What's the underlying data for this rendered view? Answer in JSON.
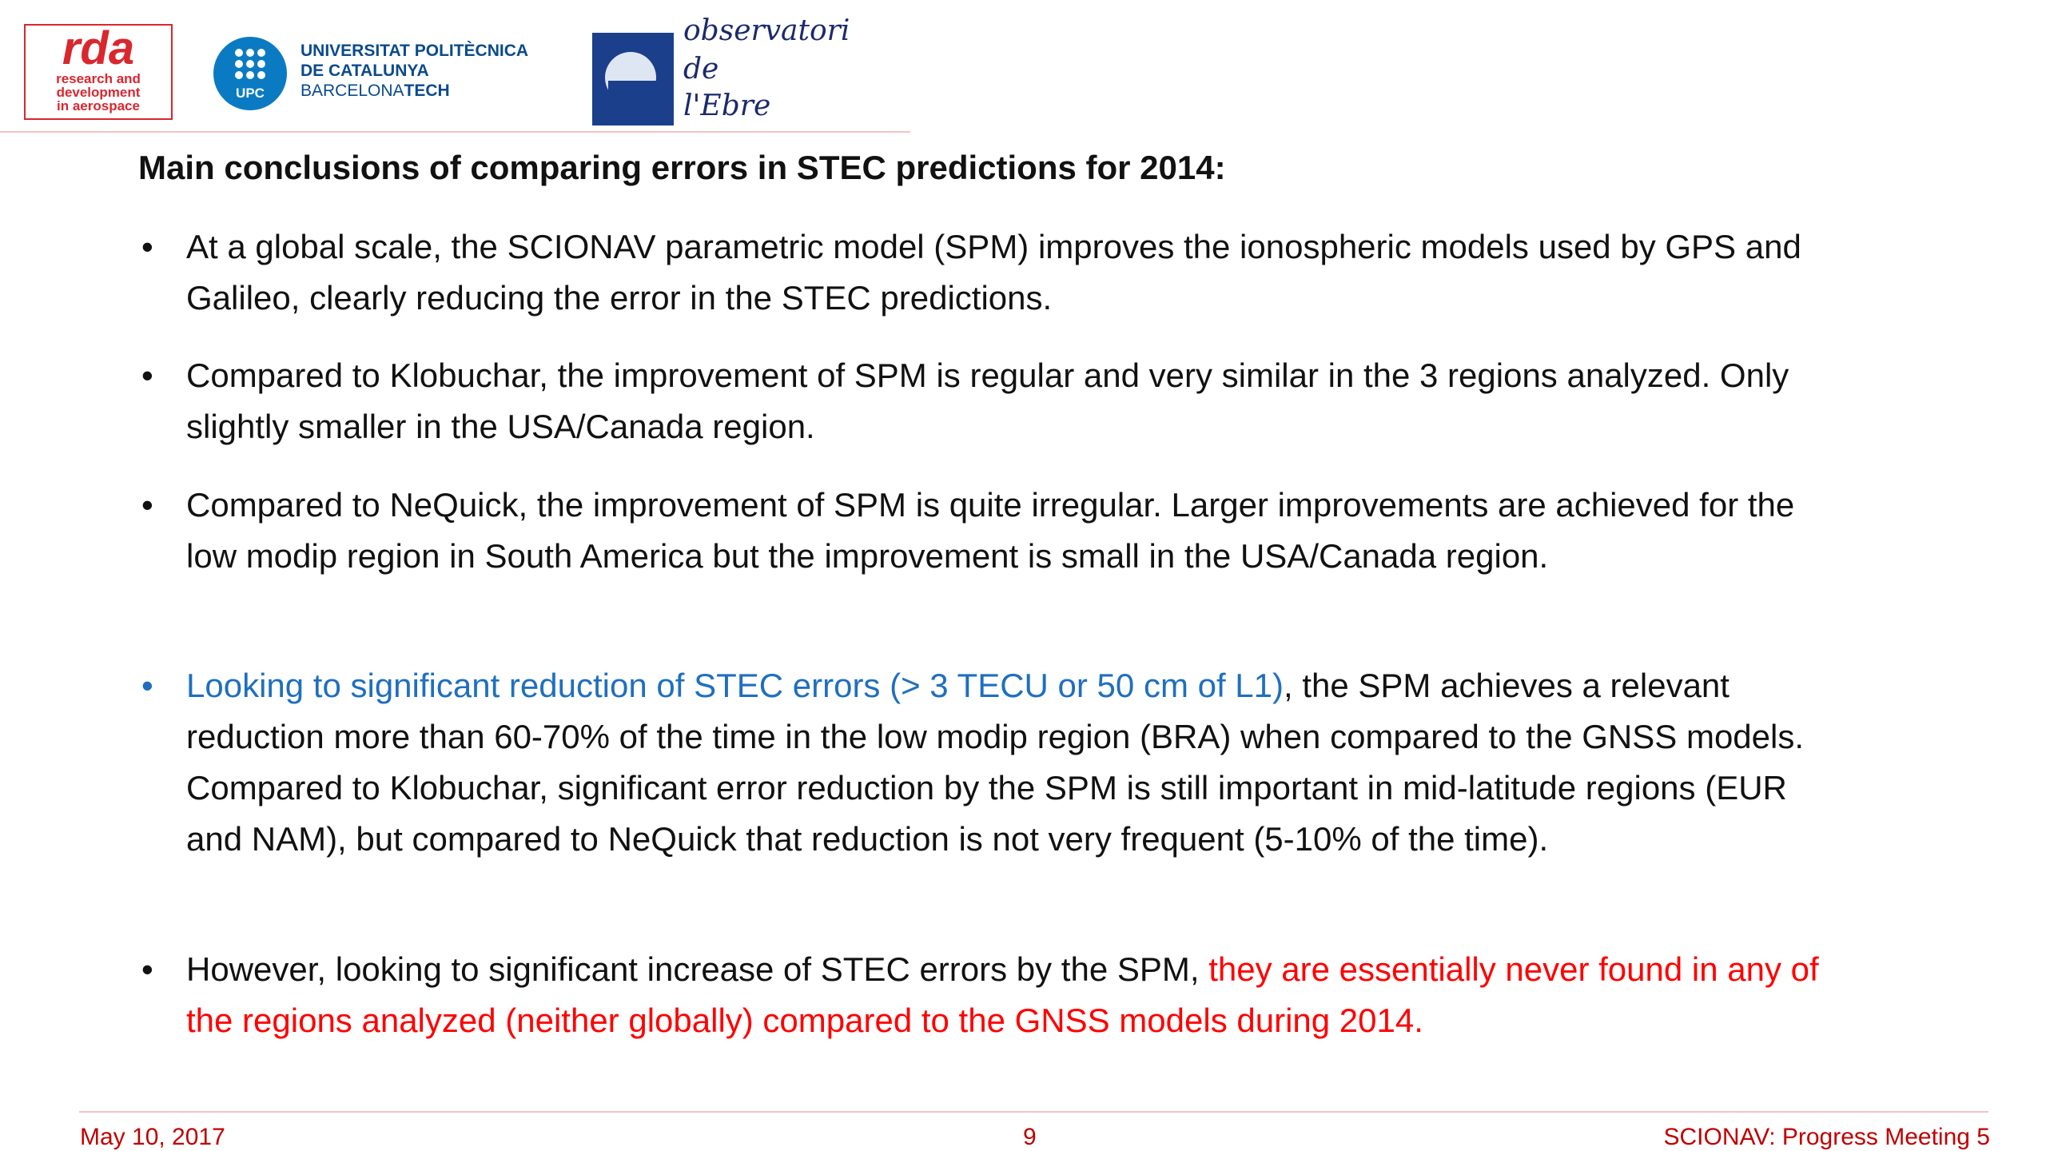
{
  "header": {
    "rda_logo": {
      "name": "rda",
      "tagline": [
        "research and",
        "development",
        "in aerospace"
      ]
    },
    "upc_logo": {
      "badge": "UPC",
      "lines": [
        "UNIVERSITAT POLITÈCNICA",
        "DE CATALUNYA"
      ],
      "sub_plain": "BARCELONA",
      "sub_bold": "TECH"
    },
    "ebre_logo": {
      "lines": [
        "observatori",
        "de",
        "l'Ebre"
      ]
    }
  },
  "title": "Main conclusions of comparing errors in STEC predictions for 2014:",
  "bullets": [
    {
      "segments": [
        {
          "text": "At a global scale, the SCIONAV parametric model (SPM) improves the ionospheric models used by GPS and Galileo, clearly reducing the error in the STEC predictions.",
          "color": "#111111"
        }
      ]
    },
    {
      "segments": [
        {
          "text": "Compared to Klobuchar, the improvement of SPM is regular and very similar in the 3 regions analyzed. Only slightly smaller in the USA/Canada region.",
          "color": "#111111"
        }
      ]
    },
    {
      "segments": [
        {
          "text": "Compared to NeQuick, the improvement of SPM is quite irregular. Larger improvements are achieved for the low modip region in South America but the improvement is small in the USA/Canada region.",
          "color": "#111111"
        }
      ]
    },
    {
      "bullet_color": "#1f6fbf",
      "segments": [
        {
          "text": "Looking to significant reduction of STEC errors (> 3 TECU or 50 cm of L1)",
          "color": "#1f6fbf"
        },
        {
          "text": ", the SPM achieves a relevant reduction more than 60-70% of the time in the low modip region (BRA) when compared to the GNSS models. Compared to Klobuchar, significant error reduction by the SPM is still important in mid-latitude regions (EUR and NAM), but compared to NeQuick that reduction is not very frequent (5-10% of the time).",
          "color": "#111111"
        }
      ]
    },
    {
      "segments": [
        {
          "text": "However, looking to significant increase of STEC errors by the SPM, ",
          "color": "#111111"
        },
        {
          "text": "they are essentially never found in any of the regions analyzed (neither globally) compared to the GNSS models during 2014.",
          "color": "#ff0000"
        }
      ]
    }
  ],
  "footer": {
    "date": "May 10, 2017",
    "page": 9,
    "meeting": "SCIONAV: Progress Meeting 5"
  }
}
